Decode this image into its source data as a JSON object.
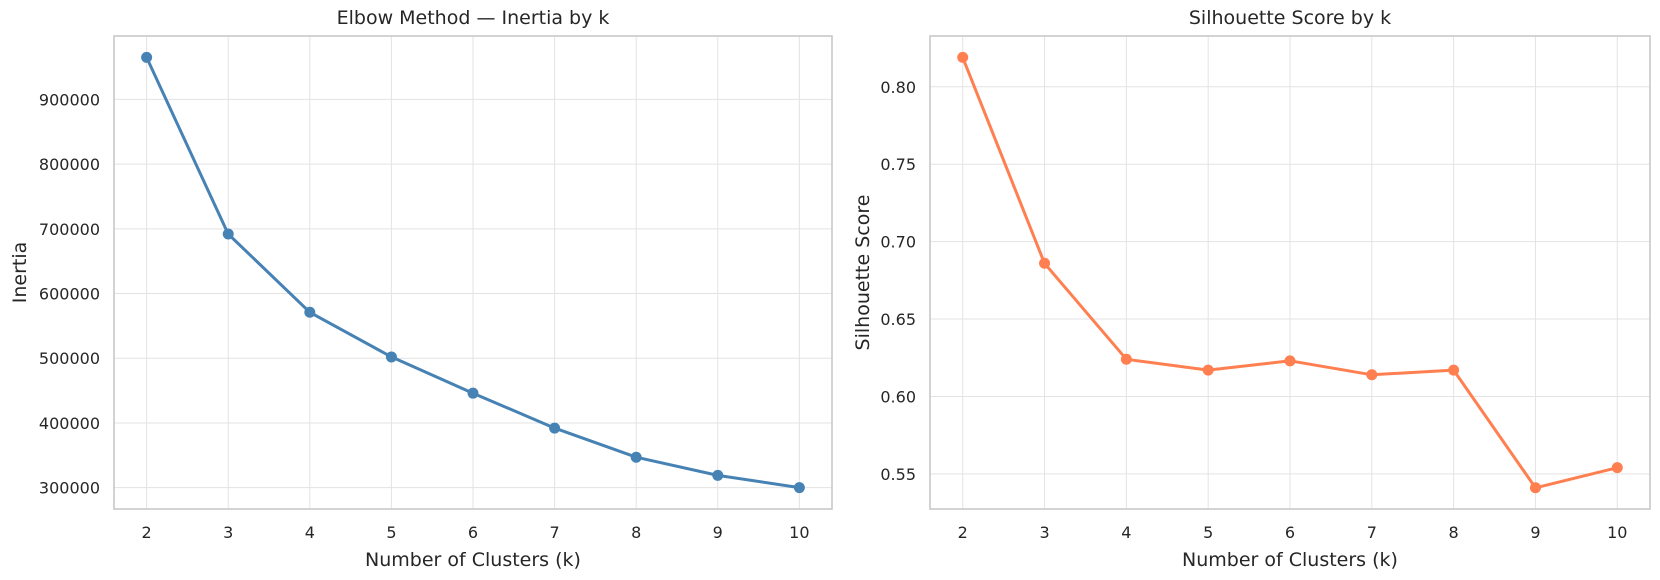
{
  "chart_data": [
    {
      "type": "line",
      "title": "Elbow Method — Inertia by k",
      "xlabel": "Number of Clusters (k)",
      "ylabel": "Inertia",
      "x": [
        2,
        3,
        4,
        5,
        6,
        7,
        8,
        9,
        10
      ],
      "series": [
        {
          "values": [
            965000,
            692000,
            571000,
            502000,
            446000,
            392000,
            347000,
            319000,
            300000
          ],
          "color": "#4682b4"
        }
      ],
      "xlim": [
        1.6,
        10.4
      ],
      "ylim": [
        267000,
        998000
      ],
      "xticks": [
        "2",
        "3",
        "4",
        "5",
        "6",
        "7",
        "8",
        "9",
        "10"
      ],
      "yticks": [
        300000,
        400000,
        500000,
        600000,
        700000,
        800000,
        900000
      ],
      "ytick_labels": [
        "300000",
        "400000",
        "500000",
        "600000",
        "700000",
        "800000",
        "900000"
      ],
      "grid": true,
      "marker": "circle"
    },
    {
      "type": "line",
      "title": "Silhouette Score by k",
      "xlabel": "Number of Clusters (k)",
      "ylabel": "Silhouette Score",
      "x": [
        2,
        3,
        4,
        5,
        6,
        7,
        8,
        9,
        10
      ],
      "series": [
        {
          "values": [
            0.819,
            0.686,
            0.624,
            0.617,
            0.623,
            0.614,
            0.617,
            0.541,
            0.554
          ],
          "color": "#ff7f50"
        }
      ],
      "xlim": [
        1.6,
        10.4
      ],
      "ylim": [
        0.5273,
        0.8328
      ],
      "xticks": [
        "2",
        "3",
        "4",
        "5",
        "6",
        "7",
        "8",
        "9",
        "10"
      ],
      "yticks": [
        0.55,
        0.6,
        0.65,
        0.7,
        0.75,
        0.8
      ],
      "ytick_labels": [
        "0.55",
        "0.60",
        "0.65",
        "0.70",
        "0.75",
        "0.80"
      ],
      "grid": true,
      "marker": "circle"
    }
  ]
}
